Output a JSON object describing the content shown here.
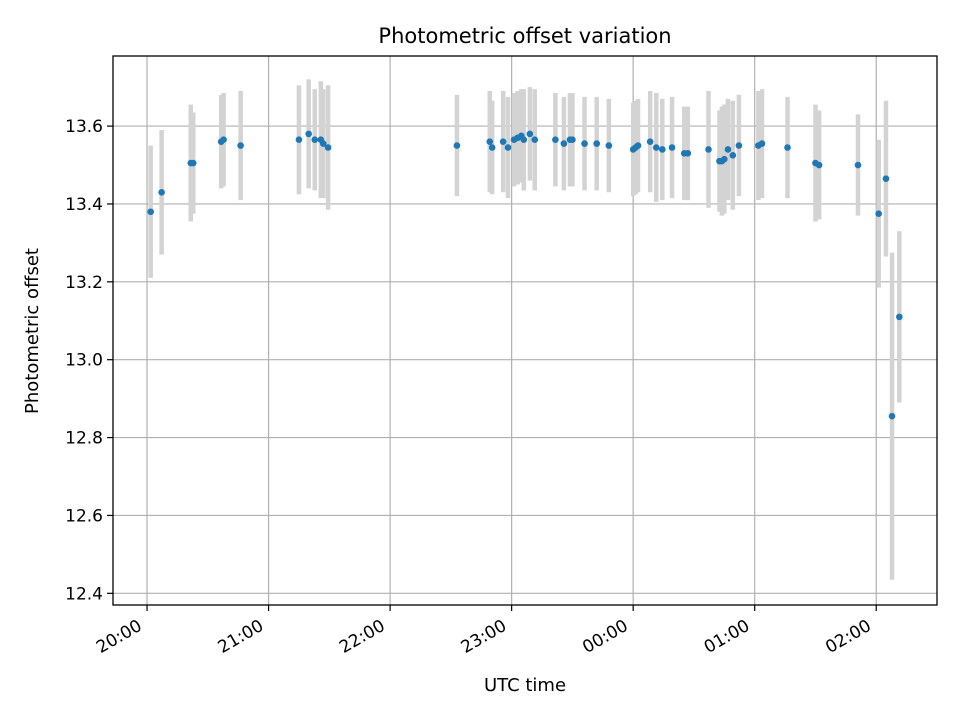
{
  "chart_data": {
    "type": "scatter",
    "title": "Photometric offset variation",
    "xlabel": "UTC time",
    "ylabel": "Photometric offset",
    "grid": true,
    "x_ticks": [
      "20:00",
      "21:00",
      "22:00",
      "23:00",
      "00:00",
      "01:00",
      "02:00"
    ],
    "x_tick_hours": [
      20,
      21,
      22,
      23,
      24,
      25,
      26
    ],
    "y_ticks": [
      "12.4",
      "12.6",
      "12.8",
      "13.0",
      "13.2",
      "13.4",
      "13.6"
    ],
    "y_tick_values": [
      12.4,
      12.6,
      12.8,
      13.0,
      13.2,
      13.4,
      13.6
    ],
    "xlim_hours": [
      19.72,
      26.5
    ],
    "ylim": [
      12.37,
      13.78
    ],
    "colors": {
      "point": "#1f77b4",
      "errorbar": "#d3d3d3",
      "grid": "#b0b0b0"
    },
    "series": [
      {
        "x_hours": [
          20.03,
          20.12,
          20.36,
          20.38,
          20.61,
          20.63,
          20.77,
          21.25,
          21.33,
          21.38,
          21.43,
          21.45,
          21.49,
          22.55,
          22.82,
          22.84,
          22.93,
          22.97,
          23.02,
          23.05,
          23.08,
          23.1,
          23.15,
          23.19,
          23.36,
          23.43,
          23.48,
          23.5,
          23.6,
          23.7,
          23.8,
          24.0,
          24.02,
          24.04,
          24.14,
          24.19,
          24.24,
          24.32,
          24.42,
          24.45,
          24.62,
          24.71,
          24.73,
          24.75,
          24.78,
          24.82,
          24.87,
          25.03,
          25.06,
          25.27,
          25.5,
          25.53,
          25.85,
          26.02,
          26.08,
          26.13,
          26.19
        ],
        "y": [
          13.38,
          13.43,
          13.505,
          13.505,
          13.56,
          13.565,
          13.55,
          13.565,
          13.58,
          13.565,
          13.565,
          13.555,
          13.545,
          13.55,
          13.56,
          13.545,
          13.56,
          13.545,
          13.565,
          13.57,
          13.575,
          13.565,
          13.58,
          13.565,
          13.565,
          13.555,
          13.565,
          13.565,
          13.555,
          13.555,
          13.55,
          13.54,
          13.545,
          13.55,
          13.56,
          13.545,
          13.54,
          13.545,
          13.53,
          13.53,
          13.54,
          13.51,
          13.51,
          13.515,
          13.54,
          13.525,
          13.55,
          13.55,
          13.555,
          13.545,
          13.505,
          13.5,
          13.5,
          13.375,
          13.465,
          12.855,
          13.11
        ],
        "yerr": [
          0.17,
          0.16,
          0.15,
          0.13,
          0.12,
          0.12,
          0.14,
          0.14,
          0.14,
          0.13,
          0.15,
          0.14,
          0.16,
          0.13,
          0.13,
          0.12,
          0.13,
          0.13,
          0.12,
          0.12,
          0.12,
          0.13,
          0.12,
          0.13,
          0.12,
          0.12,
          0.12,
          0.12,
          0.12,
          0.12,
          0.12,
          0.12,
          0.12,
          0.12,
          0.13,
          0.14,
          0.13,
          0.13,
          0.12,
          0.12,
          0.15,
          0.13,
          0.14,
          0.14,
          0.13,
          0.14,
          0.13,
          0.14,
          0.14,
          0.13,
          0.15,
          0.14,
          0.13,
          0.19,
          0.2,
          0.42,
          0.22
        ]
      }
    ]
  }
}
